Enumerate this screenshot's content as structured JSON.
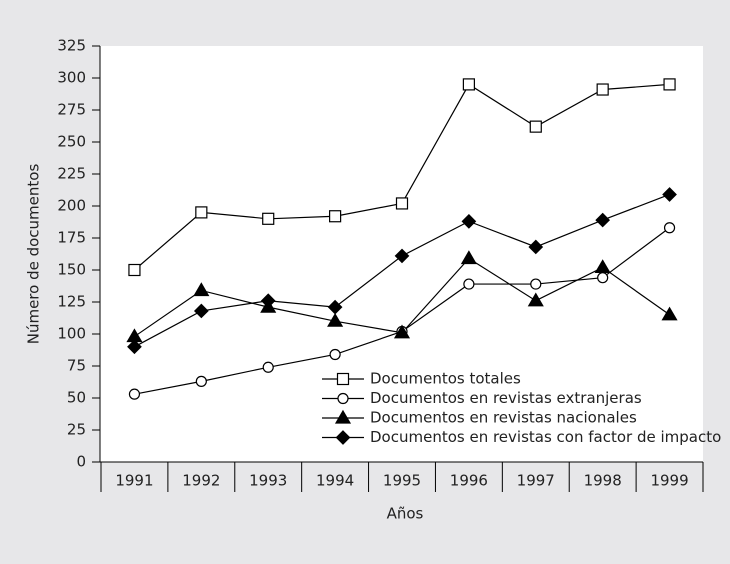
{
  "chart_data": {
    "type": "line",
    "x_label": "Años",
    "y_label": "Número de documentos",
    "categories": [
      "1991",
      "1992",
      "1993",
      "1994",
      "1995",
      "1996",
      "1997",
      "1998",
      "1999"
    ],
    "series": [
      {
        "name": "Documentos totales",
        "color": "#000000",
        "marker": "square-open",
        "values": [
          150,
          195,
          190,
          192,
          202,
          295,
          262,
          291,
          295
        ]
      },
      {
        "name": "Documentos en revistas extranjeras",
        "color": "#000000",
        "marker": "circle-open",
        "values": [
          53,
          63,
          74,
          84,
          102,
          139,
          139,
          144,
          183
        ]
      },
      {
        "name": "Documentos en revistas nacionales",
        "color": "#000000",
        "marker": "triangle-filled",
        "values": [
          98,
          134,
          121,
          110,
          101,
          159,
          126,
          152,
          115
        ]
      },
      {
        "name": "Documentos en revistas con factor de impacto",
        "color": "#000000",
        "marker": "diamond-filled",
        "values": [
          90,
          118,
          126,
          121,
          161,
          188,
          168,
          189,
          209
        ]
      }
    ],
    "ylim": [
      0,
      325
    ],
    "yticks": [
      0,
      25,
      50,
      75,
      100,
      125,
      150,
      175,
      200,
      225,
      250,
      275,
      300,
      325
    ],
    "legend": "lower right"
  }
}
